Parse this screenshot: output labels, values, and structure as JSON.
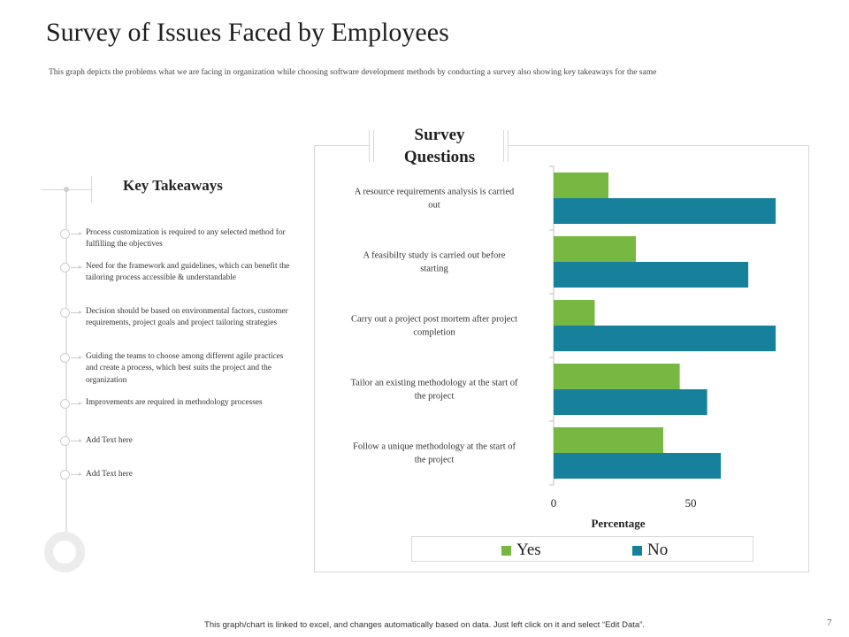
{
  "page": {
    "title": "Survey of Issues Faced by Employees",
    "subtitle": "This graph depicts the problems what we are facing in organization while choosing software development methods by conducting a survey  also showing key takeaways for the same",
    "footer": "This graph/chart is linked to excel, and changes automatically based on data. Just left click on it and select “Edit Data”.",
    "page_number": "7"
  },
  "takeaways": {
    "heading": "Key Takeaways",
    "items": [
      "Process customization is required to any selected method for fulfilling the objectives",
      "Need for the framework and guidelines, which can benefit the tailoring process accessible & understandable",
      "Decision should be based on environmental factors, customer requirements, project goals and project tailoring strategies",
      "Guiding the teams to choose among different agile practices and create a process, which best suits the project and the organization",
      "Improvements are required in methodology processes",
      "Add Text here",
      "Add Text here"
    ]
  },
  "colors": {
    "yes": "#77b843",
    "no": "#17809a",
    "axis": "#bfbfbf"
  },
  "chart_data": {
    "type": "bar",
    "orientation": "horizontal",
    "title": "Survey\nQuestions",
    "categories": [
      "A resource requirements analysis is carried out",
      "A feasibilty study is carried out before starting",
      "Carry  out a project post mortem after project completion",
      "Tailor an existing methodology at the start of the project",
      "Follow a unique methodology at the start of the project"
    ],
    "series": [
      {
        "name": "Yes",
        "values": [
          20,
          30,
          15,
          46,
          40
        ]
      },
      {
        "name": "No",
        "values": [
          81,
          71,
          81,
          56,
          61
        ]
      }
    ],
    "xlabel": "Percentage",
    "xlim": [
      0,
      100
    ],
    "xticks": [
      "0",
      "50"
    ],
    "grid": false,
    "legend": "bottom"
  }
}
